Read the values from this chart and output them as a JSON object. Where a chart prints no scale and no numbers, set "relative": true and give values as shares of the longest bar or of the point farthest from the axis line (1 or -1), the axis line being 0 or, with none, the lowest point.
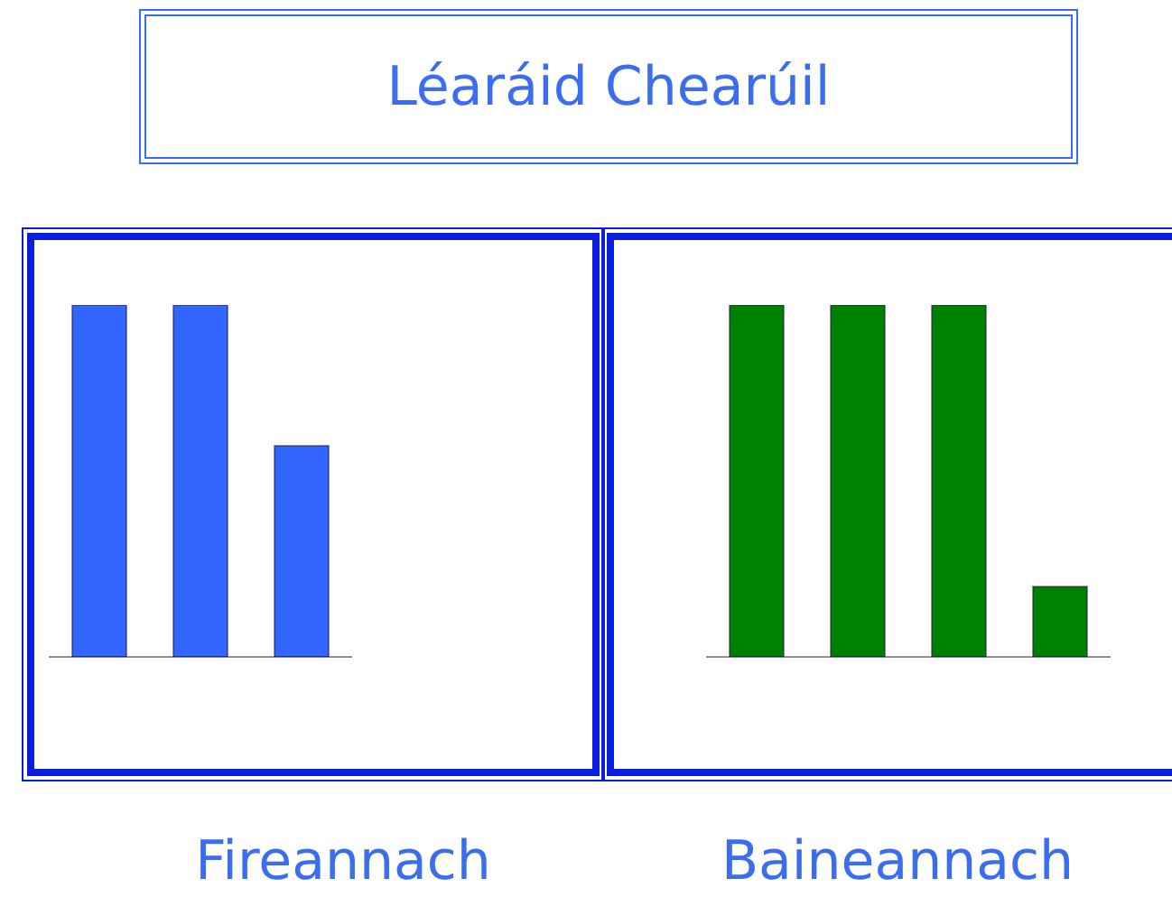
{
  "chart_data": [
    {
      "type": "other",
      "title": "Léaráid Chearúil"
    },
    {
      "type": "bar",
      "xlabel": "Fireannach",
      "categories": [
        null,
        null,
        null
      ],
      "values": [
        1,
        1,
        0.6
      ],
      "color": "#3366ff",
      "relative": true
    },
    {
      "type": "bar",
      "xlabel": "Baineannach",
      "categories": [
        null,
        null,
        null,
        null
      ],
      "values": [
        1,
        1,
        1,
        0.2
      ],
      "color": "#008000",
      "relative": true
    }
  ]
}
